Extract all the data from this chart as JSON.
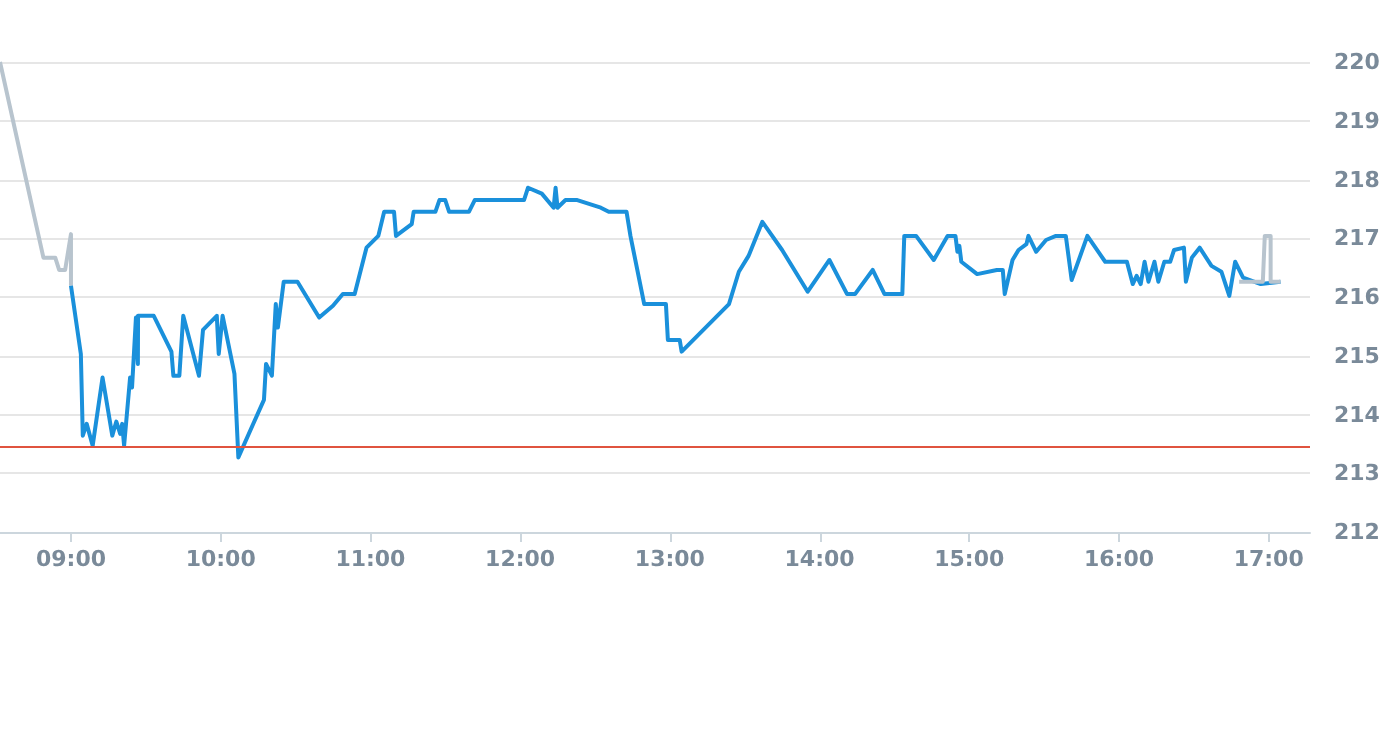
{
  "chart_data": {
    "type": "line",
    "grid": "y",
    "marker": "none",
    "line_style": "solid",
    "xlim": [
      8.526,
      17.276
    ],
    "xticks": [
      {
        "value": 9,
        "label": "09:00"
      },
      {
        "value": 10,
        "label": "10:00"
      },
      {
        "value": 11,
        "label": "11:00"
      },
      {
        "value": 12,
        "label": "12:00"
      },
      {
        "value": 13,
        "label": "13:00"
      },
      {
        "value": 14,
        "label": "14:00"
      },
      {
        "value": 15,
        "label": "15:00"
      },
      {
        "value": 16,
        "label": "16:00"
      },
      {
        "value": 17,
        "label": "17:00"
      }
    ],
    "ylim": [
      212,
      220
    ],
    "yticks": [
      212,
      213,
      214,
      215,
      216,
      217,
      218,
      219,
      220
    ],
    "ref_lines": [
      {
        "axis": "y",
        "value": 213.44,
        "color": "#e0533f",
        "line_style": "solid"
      }
    ],
    "series": [
      {
        "color": "#b8c4ce",
        "x": [
          8.526,
          8.816,
          8.895,
          8.921,
          8.961,
          9.0,
          9.0
        ],
        "values": [
          220.0,
          216.67,
          216.67,
          216.46,
          216.46,
          217.07,
          216.19
        ]
      },
      {
        "color": "#1a90db",
        "x": [
          9.0,
          9.066,
          9.079,
          9.105,
          9.145,
          9.211,
          9.276,
          9.303,
          9.329,
          9.342,
          9.355,
          9.395,
          9.408,
          9.434,
          9.447,
          9.448,
          9.553,
          9.671,
          9.684,
          9.724,
          9.75,
          9.855,
          9.882,
          9.974,
          9.987,
          10.013,
          10.092,
          10.118,
          10.289,
          10.303,
          10.342,
          10.368,
          10.382,
          10.421,
          10.513,
          10.658,
          10.75,
          10.816,
          10.895,
          10.974,
          11.053,
          11.092,
          11.158,
          11.171,
          11.276,
          11.289,
          11.434,
          11.461,
          11.5,
          11.526,
          11.658,
          11.697,
          12.026,
          12.053,
          12.145,
          12.224,
          12.237,
          12.25,
          12.303,
          12.382,
          12.539,
          12.592,
          12.711,
          12.737,
          12.829,
          12.974,
          12.987,
          13.066,
          13.079,
          13.395,
          13.461,
          13.526,
          13.618,
          13.75,
          13.921,
          14.066,
          14.184,
          14.237,
          14.355,
          14.434,
          14.553,
          14.566,
          14.645,
          14.763,
          14.855,
          14.908,
          14.921,
          14.934,
          14.947,
          15.053,
          15.184,
          15.224,
          15.237,
          15.289,
          15.329,
          15.382,
          15.395,
          15.447,
          15.513,
          15.579,
          15.645,
          15.684,
          15.789,
          15.908,
          16.053,
          16.092,
          16.118,
          16.145,
          16.171,
          16.197,
          16.237,
          16.263,
          16.303,
          16.342,
          16.368,
          16.434,
          16.447,
          16.487,
          16.539,
          16.618,
          16.684,
          16.737,
          16.776,
          16.829,
          16.947,
          17.079
        ],
        "values": [
          216.19,
          215.03,
          213.64,
          213.84,
          213.47,
          214.63,
          213.64,
          213.88,
          213.67,
          213.84,
          213.47,
          214.63,
          214.46,
          215.65,
          214.86,
          215.68,
          215.68,
          215.07,
          214.66,
          214.66,
          215.68,
          214.66,
          215.44,
          215.68,
          215.03,
          215.68,
          214.69,
          213.27,
          214.25,
          214.86,
          214.66,
          215.88,
          215.48,
          216.26,
          216.26,
          215.65,
          215.85,
          216.05,
          216.05,
          216.84,
          217.04,
          217.45,
          217.45,
          217.04,
          217.24,
          217.45,
          217.45,
          217.65,
          217.65,
          217.45,
          217.45,
          217.65,
          217.65,
          217.86,
          217.76,
          217.52,
          217.86,
          217.52,
          217.65,
          217.65,
          217.52,
          217.45,
          217.45,
          217.04,
          215.88,
          215.88,
          215.27,
          215.27,
          215.07,
          215.88,
          216.43,
          216.7,
          217.28,
          216.8,
          216.09,
          216.63,
          216.05,
          216.05,
          216.46,
          216.05,
          216.05,
          217.04,
          217.04,
          216.63,
          217.04,
          217.04,
          216.77,
          216.87,
          216.6,
          216.39,
          216.46,
          216.46,
          216.05,
          216.63,
          216.8,
          216.9,
          217.04,
          216.77,
          216.97,
          217.04,
          217.04,
          216.29,
          217.04,
          216.6,
          216.6,
          216.22,
          216.36,
          216.22,
          216.6,
          216.26,
          216.6,
          216.26,
          216.6,
          216.6,
          216.8,
          216.84,
          216.26,
          216.67,
          216.84,
          216.53,
          216.43,
          216.02,
          216.6,
          216.33,
          216.22,
          216.26
        ]
      },
      {
        "color": "#b8c4ce",
        "x": [
          16.803,
          16.961,
          16.974,
          17.013,
          17.013,
          17.079
        ],
        "values": [
          216.26,
          216.26,
          217.04,
          217.04,
          216.26,
          216.26
        ]
      }
    ]
  }
}
